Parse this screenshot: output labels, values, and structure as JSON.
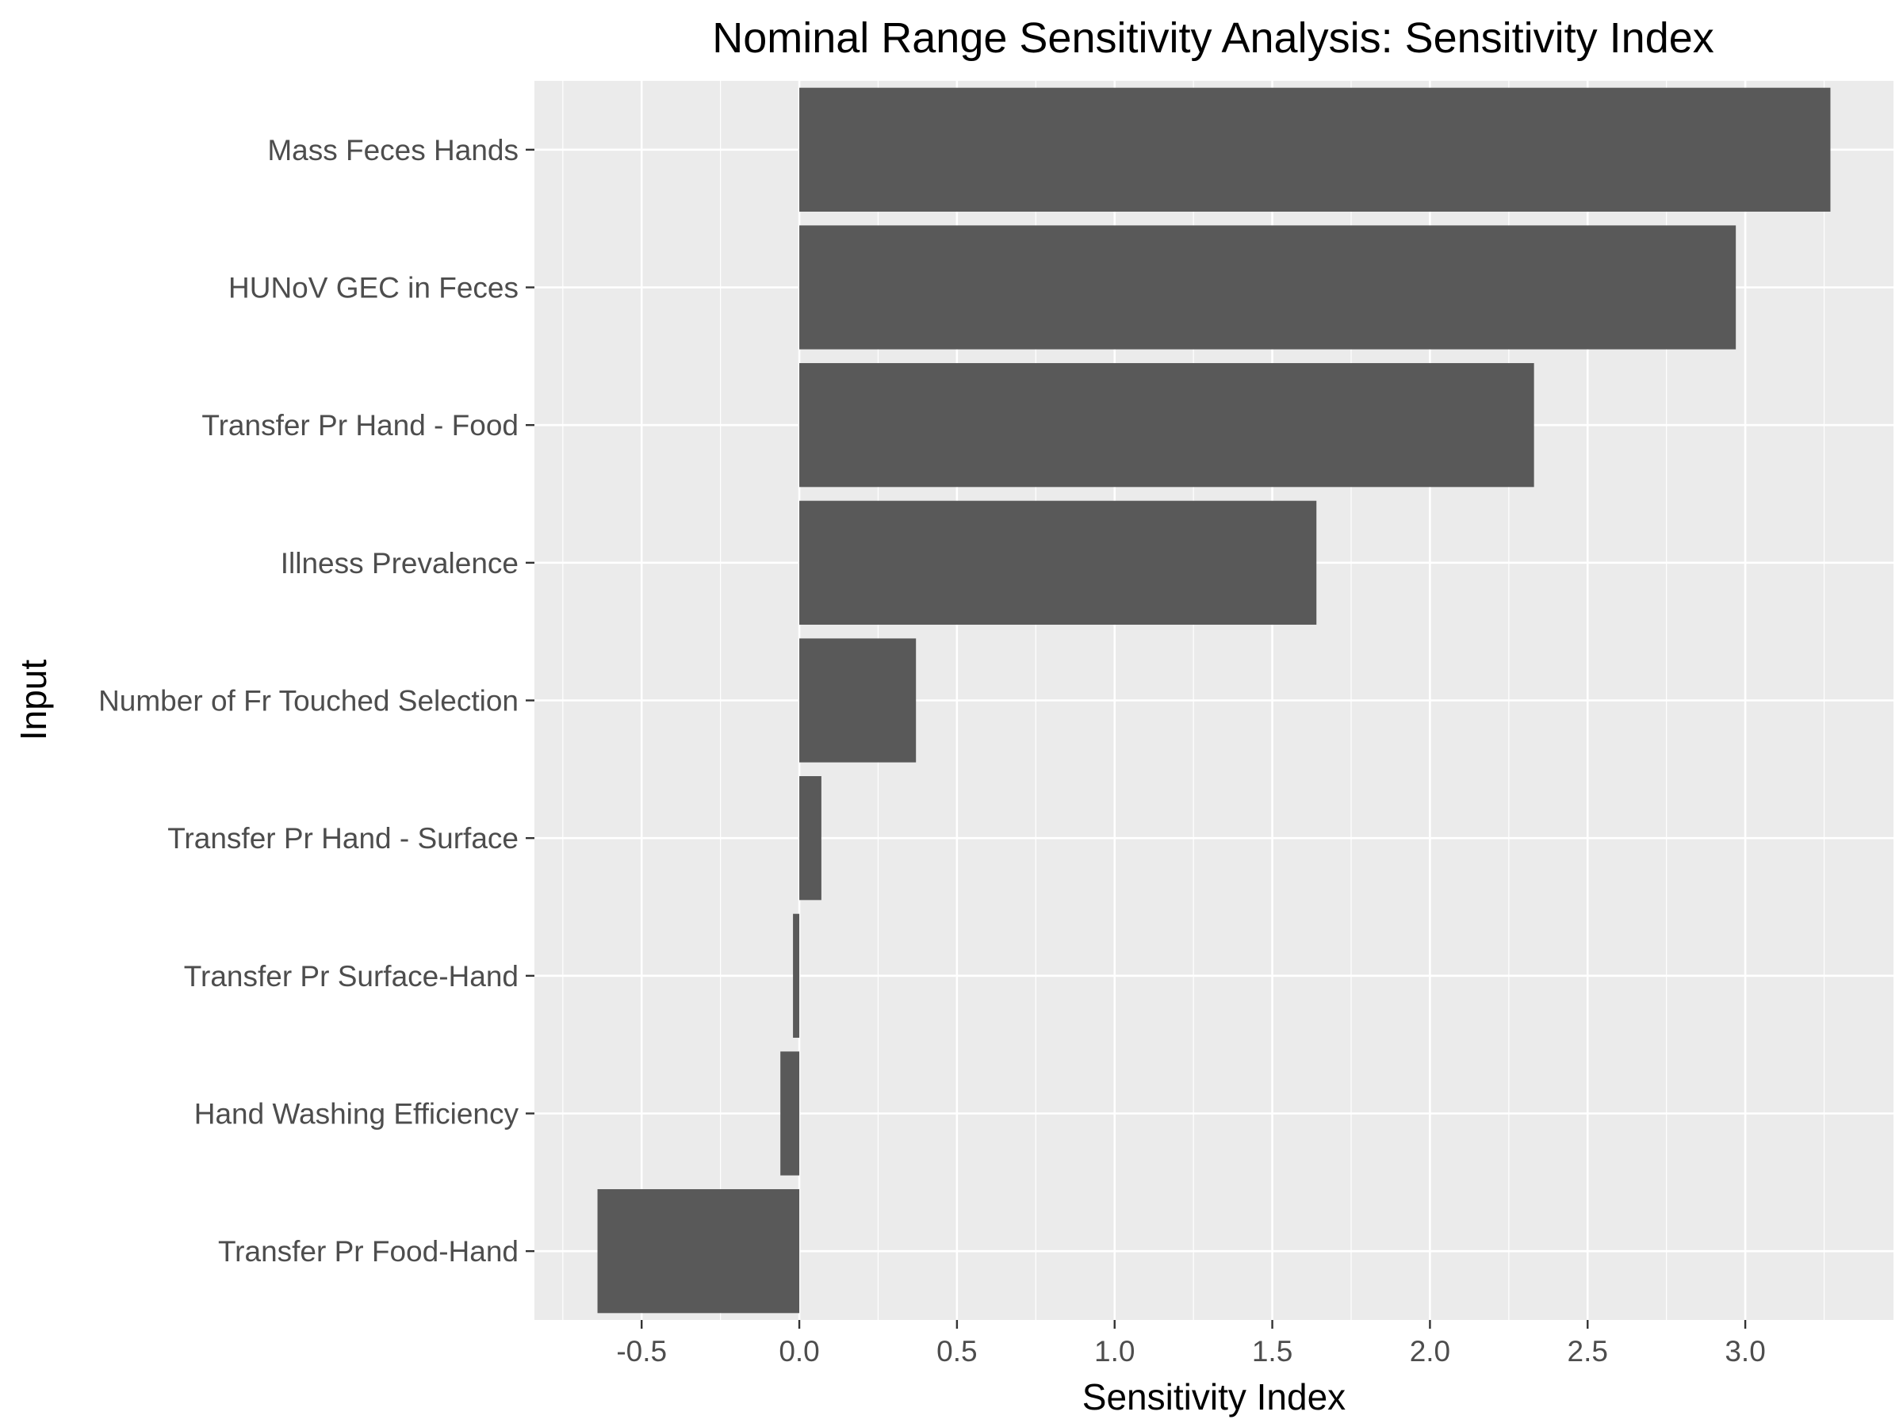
{
  "chart_data": {
    "type": "bar",
    "orientation": "horizontal",
    "title": "Nominal Range Sensitivity Analysis: Sensitivity Index",
    "xlabel": "Sensitivity Index",
    "ylabel": "Input",
    "categories": [
      "Mass Feces Hands",
      "HUNoV GEC in Feces",
      "Transfer Pr Hand - Food",
      "Illness Prevalence",
      "Number of Fr Touched Selection",
      "Transfer Pr Hand - Surface",
      "Transfer Pr Surface-Hand",
      "Hand Washing Efficiency",
      "Transfer Pr Food-Hand"
    ],
    "values": [
      3.27,
      2.97,
      2.33,
      1.64,
      0.37,
      0.07,
      -0.02,
      -0.06,
      -0.64
    ],
    "xlim": [
      -0.84,
      3.47
    ],
    "xticks": [
      -0.5,
      0.0,
      0.5,
      1.0,
      1.5,
      2.0,
      2.5,
      3.0
    ],
    "xtick_labels": [
      "-0.5",
      "0.0",
      "0.5",
      "1.0",
      "1.5",
      "2.0",
      "2.5",
      "3.0"
    ],
    "grid": true,
    "colors": {
      "bar": "#595959",
      "panel": "#ebebeb",
      "grid": "#ffffff",
      "tick_text": "#4d4d4d",
      "tick_mark": "#333333"
    }
  }
}
